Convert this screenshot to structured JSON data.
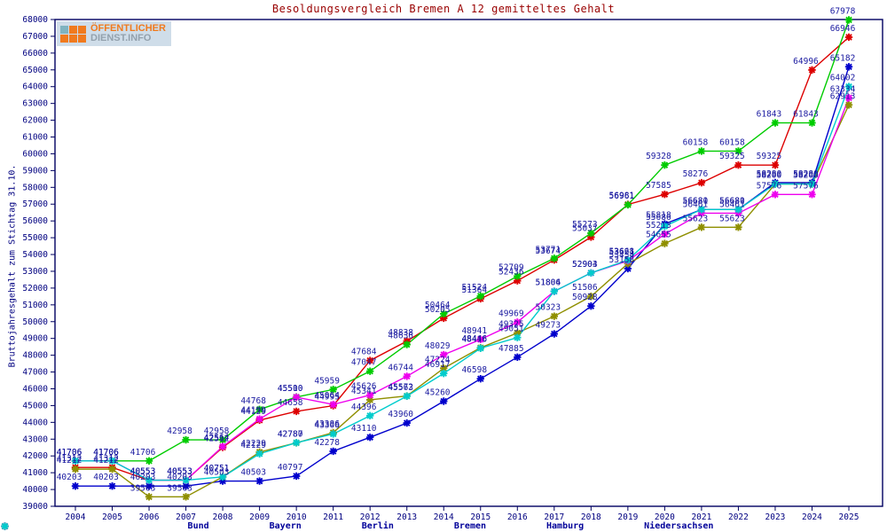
{
  "title": "Besoldungsvergleich Bremen A 12 gemitteltes Gehalt",
  "ylabel": "Bruttojahresgehalt zum Stichtag 31.10.",
  "logo": {
    "line1": "ÖFFENTLICHER",
    "line2": "DIENST.INFO"
  },
  "colors": {
    "frame": "#000060",
    "tick_text": "#000080",
    "point_label": "#1a1aa0",
    "title_text": "#990000",
    "logo_orange": "#f07a1e",
    "logo_gray": "#93a1ad",
    "logo_bg": "#cfdde9"
  },
  "chart_data": {
    "type": "line",
    "x": [
      2004,
      2005,
      2006,
      2007,
      2008,
      2009,
      2010,
      2011,
      2012,
      2013,
      2014,
      2015,
      2016,
      2017,
      2018,
      2019,
      2020,
      2021,
      2022,
      2023,
      2024,
      2025
    ],
    "xlabel": "",
    "ylabel": "Bruttojahresgehalt zum Stichtag 31.10.",
    "ylim": [
      39000,
      68000
    ],
    "ytick_step": 1000,
    "grid": false,
    "legend_position": "bottom",
    "point_labels": true,
    "series": [
      {
        "name": "Bund",
        "color": "#dd0000",
        "values": [
          41312,
          41312,
          40553,
          40553,
          42512,
          44129,
          44658,
          44995,
          47684,
          48838,
          50205,
          51364,
          52436,
          53674,
          55037,
          56981,
          57585,
          58276,
          59325,
          59325,
          64996,
          66946
        ]
      },
      {
        "name": "Bayern",
        "color": "#00cc00",
        "values": [
          41706,
          41706,
          41706,
          42958,
          42958,
          44768,
          45510,
          45959,
          47047,
          48636,
          50464,
          51524,
          52709,
          53771,
          55273,
          56961,
          59328,
          60158,
          60158,
          61843,
          61843,
          67978
        ]
      },
      {
        "name": "Berlin",
        "color": "#0000cc",
        "values": [
          40203,
          40203,
          40203,
          40203,
          40503,
          40503,
          40797,
          42278,
          43110,
          43960,
          45260,
          46598,
          47885,
          49273,
          50928,
          53158,
          55818,
          56681,
          56681,
          58280,
          58280,
          65182
        ]
      },
      {
        "name": "Bremen",
        "color": "#8f8f00",
        "values": [
          41212,
          41212,
          39563,
          39563,
          40751,
          42229,
          42780,
          43386,
          45341,
          45572,
          47224,
          48446,
          49325,
          50323,
          51506,
          53454,
          54655,
          55623,
          55623,
          58200,
          58200,
          62913
        ]
      },
      {
        "name": "Hamburg",
        "color": "#ee00ee",
        "values": [
          41706,
          41706,
          40553,
          40553,
          42564,
          44199,
          45500,
          45064,
          45626,
          46744,
          48029,
          48941,
          49969,
          51806,
          52903,
          53621,
          55213,
          56461,
          56461,
          57576,
          57576,
          63334
        ]
      },
      {
        "name": "Niedersachsen",
        "color": "#00cccc",
        "values": [
          41706,
          41706,
          40553,
          40553,
          40751,
          42129,
          42787,
          43306,
          44396,
          45563,
          46917,
          48416,
          49051,
          51804,
          52904,
          53668,
          55686,
          56680,
          56680,
          58200,
          58200,
          64002
        ]
      }
    ]
  }
}
